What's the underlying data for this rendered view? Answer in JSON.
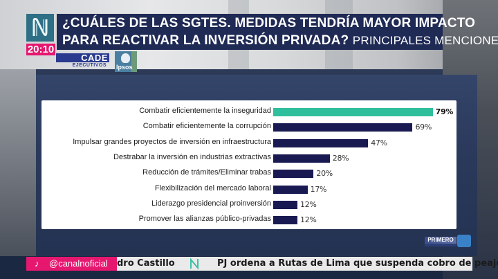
{
  "header": {
    "channel_logo": "canal-n-logo",
    "clock": "20:10",
    "title_line1": "¿CUÁLES DE LAS SGTES. MEDIDAS TENDRÍA MAYOR IMPACTO",
    "title_line2": "PARA REACTIVAR LA INVERSIÓN PRIVADA?",
    "title_sub": "PRINCIPALES MENCIONES",
    "sponsor_cade": "CADE",
    "sponsor_cade_sub": "EJECUTIVOS",
    "sponsor_ipsos": "Ipsos"
  },
  "chart_data": {
    "type": "bar",
    "orientation": "horizontal",
    "title": "¿Cuáles de las sgtes. medidas tendría mayor impacto para reactivar la inversión privada? Principales menciones",
    "categories": [
      "Combatir eficientemente la inseguridad",
      "Combatir eficientemente la corrupción",
      "Impulsar grandes proyectos de inversión en infraestructura",
      "Destrabar la inversión en industrias extractivas",
      "Reducción de trámites/Eliminar trabas",
      "Flexibilización del mercado laboral",
      "Liderazgo presidencial proinversión",
      "Promover las alianzas público-privadas"
    ],
    "values": [
      79,
      69,
      47,
      28,
      20,
      17,
      12,
      12
    ],
    "value_labels": [
      "79%",
      "69%",
      "47%",
      "28%",
      "20%",
      "17%",
      "12%",
      "12%"
    ],
    "unit": "%",
    "highlight_index": 0,
    "colors": {
      "highlight": "#2fbf9c",
      "default": "#1a1a52"
    },
    "xlim": [
      0,
      100
    ],
    "grid": false,
    "legend": "none"
  },
  "ticker": {
    "social_icon": "tiktok-icon",
    "social_handle": "@canalnoficial",
    "text_before": "dro Castillo",
    "separator_logo": "canal-n-logo",
    "text_after": "PJ ordena a Rutas de Lima que suspenda cobro de peajes de"
  },
  "program_bug": {
    "label": "PRIMERO"
  }
}
